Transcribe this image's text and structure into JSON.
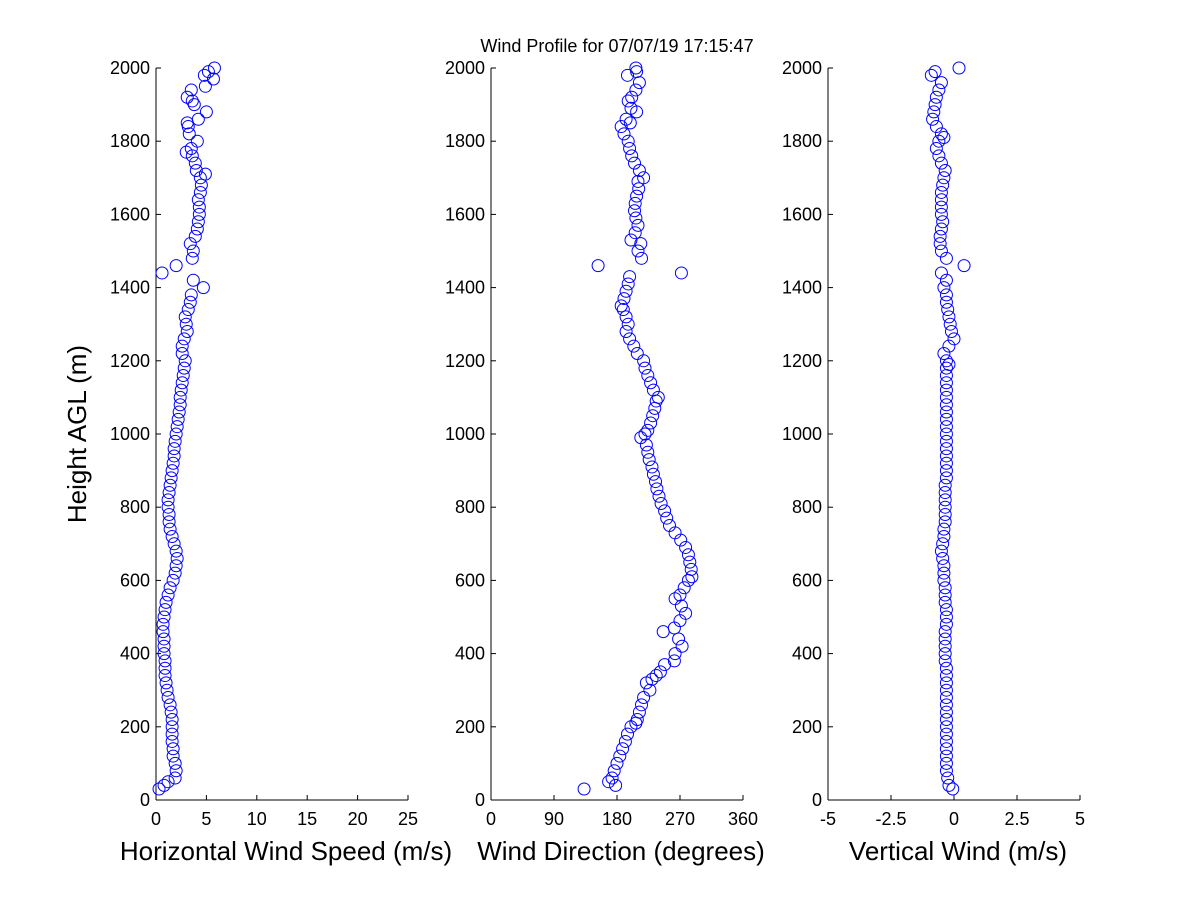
{
  "title": "Wind Profile for  07/07/19 17:15:47",
  "colors": {
    "marker": "#0000ff",
    "axis": "#000000",
    "background": "#ffffff"
  },
  "chart_data": [
    {
      "type": "scatter",
      "id": "speed",
      "xlabel": "Horizontal Wind Speed (m/s)",
      "ylabel": "Height AGL (m)",
      "xlim": [
        0,
        25
      ],
      "ylim": [
        0,
        2000
      ],
      "xticks": [
        0,
        5,
        10,
        15,
        20,
        25
      ],
      "xtick_labels": [
        "0",
        "5",
        "10",
        "15",
        "20",
        "25"
      ],
      "yticks": [
        0,
        200,
        400,
        600,
        800,
        1000,
        1200,
        1400,
        1600,
        1800,
        2000
      ],
      "ytick_labels": [
        "0",
        "200",
        "400",
        "600",
        "800",
        "1000",
        "1200",
        "1400",
        "1600",
        "1800",
        "2000"
      ],
      "grid": false,
      "marker": "open-circle",
      "points": [
        [
          0.3,
          30
        ],
        [
          0.8,
          40
        ],
        [
          1.2,
          50
        ],
        [
          1.9,
          60
        ],
        [
          2.0,
          80
        ],
        [
          1.9,
          100
        ],
        [
          1.7,
          120
        ],
        [
          1.7,
          140
        ],
        [
          1.6,
          160
        ],
        [
          1.6,
          180
        ],
        [
          1.6,
          200
        ],
        [
          1.6,
          220
        ],
        [
          1.5,
          240
        ],
        [
          1.4,
          260
        ],
        [
          1.2,
          280
        ],
        [
          1.1,
          300
        ],
        [
          1.0,
          320
        ],
        [
          0.9,
          340
        ],
        [
          0.9,
          360
        ],
        [
          0.9,
          380
        ],
        [
          0.8,
          400
        ],
        [
          0.8,
          420
        ],
        [
          0.8,
          440
        ],
        [
          0.7,
          460
        ],
        [
          0.7,
          480
        ],
        [
          0.8,
          500
        ],
        [
          0.9,
          520
        ],
        [
          1.0,
          540
        ],
        [
          1.2,
          560
        ],
        [
          1.4,
          580
        ],
        [
          1.7,
          600
        ],
        [
          1.9,
          620
        ],
        [
          2.0,
          640
        ],
        [
          2.1,
          660
        ],
        [
          2.0,
          680
        ],
        [
          1.8,
          700
        ],
        [
          1.6,
          720
        ],
        [
          1.4,
          740
        ],
        [
          1.3,
          760
        ],
        [
          1.3,
          780
        ],
        [
          1.2,
          800
        ],
        [
          1.2,
          820
        ],
        [
          1.3,
          840
        ],
        [
          1.4,
          860
        ],
        [
          1.5,
          880
        ],
        [
          1.6,
          900
        ],
        [
          1.7,
          920
        ],
        [
          1.8,
          940
        ],
        [
          1.8,
          960
        ],
        [
          1.9,
          980
        ],
        [
          2.0,
          1000
        ],
        [
          2.1,
          1020
        ],
        [
          2.2,
          1040
        ],
        [
          2.3,
          1060
        ],
        [
          2.4,
          1080
        ],
        [
          2.4,
          1100
        ],
        [
          2.5,
          1120
        ],
        [
          2.6,
          1140
        ],
        [
          2.7,
          1160
        ],
        [
          2.8,
          1180
        ],
        [
          2.9,
          1200
        ],
        [
          2.6,
          1220
        ],
        [
          2.6,
          1240
        ],
        [
          2.8,
          1260
        ],
        [
          3.1,
          1280
        ],
        [
          3.0,
          1300
        ],
        [
          2.9,
          1320
        ],
        [
          3.2,
          1340
        ],
        [
          3.4,
          1360
        ],
        [
          3.5,
          1380
        ],
        [
          4.7,
          1400
        ],
        [
          3.7,
          1420
        ],
        [
          0.6,
          1440
        ],
        [
          2.0,
          1460
        ],
        [
          3.6,
          1480
        ],
        [
          3.7,
          1500
        ],
        [
          3.4,
          1520
        ],
        [
          3.9,
          1540
        ],
        [
          4.1,
          1560
        ],
        [
          4.2,
          1580
        ],
        [
          4.3,
          1600
        ],
        [
          4.3,
          1620
        ],
        [
          4.2,
          1640
        ],
        [
          4.4,
          1660
        ],
        [
          4.5,
          1680
        ],
        [
          4.4,
          1700
        ],
        [
          4.9,
          1710
        ],
        [
          4.0,
          1720
        ],
        [
          3.9,
          1740
        ],
        [
          3.6,
          1760
        ],
        [
          3.0,
          1770
        ],
        [
          3.5,
          1780
        ],
        [
          4.1,
          1800
        ],
        [
          3.3,
          1820
        ],
        [
          3.2,
          1840
        ],
        [
          3.1,
          1850
        ],
        [
          4.2,
          1860
        ],
        [
          5.0,
          1880
        ],
        [
          3.8,
          1900
        ],
        [
          3.6,
          1910
        ],
        [
          3.1,
          1920
        ],
        [
          3.5,
          1940
        ],
        [
          4.9,
          1950
        ],
        [
          5.7,
          1970
        ],
        [
          4.8,
          1980
        ],
        [
          5.2,
          1990
        ],
        [
          5.8,
          2000
        ]
      ]
    },
    {
      "type": "scatter",
      "id": "direction",
      "xlabel": "Wind Direction (degrees)",
      "ylabel": "",
      "xlim": [
        0,
        360
      ],
      "ylim": [
        0,
        2000
      ],
      "xticks": [
        0,
        90,
        180,
        270,
        360
      ],
      "xtick_labels": [
        "0",
        "90",
        "180",
        "270",
        "360"
      ],
      "yticks": [
        0,
        200,
        400,
        600,
        800,
        1000,
        1200,
        1400,
        1600,
        1800,
        2000
      ],
      "ytick_labels": [
        "0",
        "200",
        "400",
        "600",
        "800",
        "1000",
        "1200",
        "1400",
        "1600",
        "1800",
        "2000"
      ],
      "grid": false,
      "marker": "open-circle",
      "points": [
        [
          133,
          30
        ],
        [
          178,
          40
        ],
        [
          168,
          50
        ],
        [
          173,
          60
        ],
        [
          176,
          80
        ],
        [
          180,
          100
        ],
        [
          184,
          120
        ],
        [
          188,
          140
        ],
        [
          192,
          160
        ],
        [
          195,
          180
        ],
        [
          200,
          200
        ],
        [
          207,
          210
        ],
        [
          209,
          220
        ],
        [
          212,
          240
        ],
        [
          215,
          260
        ],
        [
          218,
          280
        ],
        [
          227,
          300
        ],
        [
          222,
          320
        ],
        [
          230,
          330
        ],
        [
          236,
          340
        ],
        [
          242,
          350
        ],
        [
          248,
          370
        ],
        [
          262,
          380
        ],
        [
          263,
          400
        ],
        [
          273,
          420
        ],
        [
          268,
          440
        ],
        [
          246,
          460
        ],
        [
          262,
          470
        ],
        [
          270,
          490
        ],
        [
          278,
          510
        ],
        [
          272,
          530
        ],
        [
          263,
          550
        ],
        [
          270,
          560
        ],
        [
          276,
          580
        ],
        [
          282,
          600
        ],
        [
          287,
          610
        ],
        [
          286,
          630
        ],
        [
          284,
          650
        ],
        [
          282,
          670
        ],
        [
          278,
          690
        ],
        [
          271,
          710
        ],
        [
          263,
          730
        ],
        [
          255,
          750
        ],
        [
          251,
          770
        ],
        [
          248,
          790
        ],
        [
          243,
          810
        ],
        [
          240,
          830
        ],
        [
          237,
          850
        ],
        [
          235,
          870
        ],
        [
          232,
          890
        ],
        [
          230,
          910
        ],
        [
          226,
          930
        ],
        [
          224,
          950
        ],
        [
          222,
          970
        ],
        [
          214,
          990
        ],
        [
          220,
          1000
        ],
        [
          224,
          1010
        ],
        [
          228,
          1030
        ],
        [
          231,
          1050
        ],
        [
          234,
          1070
        ],
        [
          236,
          1090
        ],
        [
          239,
          1100
        ],
        [
          232,
          1120
        ],
        [
          228,
          1140
        ],
        [
          224,
          1160
        ],
        [
          220,
          1180
        ],
        [
          218,
          1200
        ],
        [
          209,
          1220
        ],
        [
          204,
          1240
        ],
        [
          198,
          1260
        ],
        [
          193,
          1280
        ],
        [
          196,
          1300
        ],
        [
          193,
          1320
        ],
        [
          189,
          1340
        ],
        [
          186,
          1350
        ],
        [
          190,
          1370
        ],
        [
          193,
          1390
        ],
        [
          196,
          1410
        ],
        [
          198,
          1430
        ],
        [
          272,
          1440
        ],
        [
          153,
          1460
        ],
        [
          215,
          1480
        ],
        [
          210,
          1500
        ],
        [
          214,
          1520
        ],
        [
          200,
          1530
        ],
        [
          206,
          1550
        ],
        [
          210,
          1570
        ],
        [
          207,
          1590
        ],
        [
          205,
          1610
        ],
        [
          206,
          1630
        ],
        [
          208,
          1650
        ],
        [
          211,
          1670
        ],
        [
          210,
          1690
        ],
        [
          218,
          1700
        ],
        [
          212,
          1720
        ],
        [
          205,
          1740
        ],
        [
          201,
          1760
        ],
        [
          198,
          1780
        ],
        [
          196,
          1800
        ],
        [
          190,
          1820
        ],
        [
          186,
          1840
        ],
        [
          199,
          1850
        ],
        [
          193,
          1860
        ],
        [
          208,
          1880
        ],
        [
          200,
          1890
        ],
        [
          196,
          1910
        ],
        [
          201,
          1920
        ],
        [
          207,
          1940
        ],
        [
          212,
          1960
        ],
        [
          195,
          1980
        ],
        [
          208,
          1990
        ],
        [
          207,
          2000
        ]
      ]
    },
    {
      "type": "scatter",
      "id": "vertical",
      "xlabel": "Vertical Wind (m/s)",
      "ylabel": "",
      "xlim": [
        -5,
        5
      ],
      "ylim": [
        0,
        2000
      ],
      "xticks": [
        -5,
        -2.5,
        0,
        2.5,
        5
      ],
      "xtick_labels": [
        "-5",
        "-2.5",
        "0",
        "2.5",
        "5"
      ],
      "yticks": [
        0,
        200,
        400,
        600,
        800,
        1000,
        1200,
        1400,
        1600,
        1800,
        2000
      ],
      "ytick_labels": [
        "0",
        "200",
        "400",
        "600",
        "800",
        "1000",
        "1200",
        "1400",
        "1600",
        "1800",
        "2000"
      ],
      "grid": false,
      "marker": "open-circle",
      "points": [
        [
          -0.05,
          30
        ],
        [
          -0.2,
          40
        ],
        [
          -0.25,
          60
        ],
        [
          -0.3,
          80
        ],
        [
          -0.3,
          100
        ],
        [
          -0.3,
          120
        ],
        [
          -0.3,
          140
        ],
        [
          -0.3,
          160
        ],
        [
          -0.3,
          180
        ],
        [
          -0.3,
          200
        ],
        [
          -0.3,
          220
        ],
        [
          -0.3,
          240
        ],
        [
          -0.3,
          260
        ],
        [
          -0.3,
          280
        ],
        [
          -0.3,
          300
        ],
        [
          -0.3,
          320
        ],
        [
          -0.3,
          340
        ],
        [
          -0.3,
          360
        ],
        [
          -0.35,
          380
        ],
        [
          -0.35,
          400
        ],
        [
          -0.35,
          420
        ],
        [
          -0.35,
          440
        ],
        [
          -0.35,
          460
        ],
        [
          -0.3,
          480
        ],
        [
          -0.3,
          500
        ],
        [
          -0.3,
          520
        ],
        [
          -0.35,
          540
        ],
        [
          -0.35,
          560
        ],
        [
          -0.35,
          580
        ],
        [
          -0.4,
          600
        ],
        [
          -0.4,
          620
        ],
        [
          -0.4,
          640
        ],
        [
          -0.45,
          660
        ],
        [
          -0.5,
          680
        ],
        [
          -0.45,
          700
        ],
        [
          -0.4,
          720
        ],
        [
          -0.4,
          740
        ],
        [
          -0.35,
          760
        ],
        [
          -0.35,
          780
        ],
        [
          -0.35,
          800
        ],
        [
          -0.35,
          820
        ],
        [
          -0.35,
          840
        ],
        [
          -0.35,
          860
        ],
        [
          -0.3,
          880
        ],
        [
          -0.3,
          900
        ],
        [
          -0.3,
          920
        ],
        [
          -0.3,
          940
        ],
        [
          -0.3,
          960
        ],
        [
          -0.3,
          980
        ],
        [
          -0.3,
          1000
        ],
        [
          -0.3,
          1020
        ],
        [
          -0.3,
          1040
        ],
        [
          -0.3,
          1060
        ],
        [
          -0.3,
          1080
        ],
        [
          -0.3,
          1100
        ],
        [
          -0.3,
          1120
        ],
        [
          -0.3,
          1140
        ],
        [
          -0.3,
          1160
        ],
        [
          -0.3,
          1180
        ],
        [
          -0.2,
          1190
        ],
        [
          -0.3,
          1200
        ],
        [
          -0.4,
          1220
        ],
        [
          -0.2,
          1240
        ],
        [
          0.0,
          1260
        ],
        [
          -0.1,
          1280
        ],
        [
          -0.15,
          1300
        ],
        [
          -0.2,
          1320
        ],
        [
          -0.25,
          1340
        ],
        [
          -0.3,
          1360
        ],
        [
          -0.3,
          1380
        ],
        [
          -0.4,
          1400
        ],
        [
          -0.3,
          1420
        ],
        [
          -0.5,
          1440
        ],
        [
          0.4,
          1460
        ],
        [
          -0.3,
          1480
        ],
        [
          -0.5,
          1500
        ],
        [
          -0.55,
          1520
        ],
        [
          -0.55,
          1540
        ],
        [
          -0.5,
          1560
        ],
        [
          -0.45,
          1580
        ],
        [
          -0.5,
          1600
        ],
        [
          -0.5,
          1620
        ],
        [
          -0.5,
          1640
        ],
        [
          -0.5,
          1660
        ],
        [
          -0.45,
          1680
        ],
        [
          -0.4,
          1700
        ],
        [
          -0.35,
          1720
        ],
        [
          -0.5,
          1740
        ],
        [
          -0.6,
          1760
        ],
        [
          -0.7,
          1780
        ],
        [
          -0.6,
          1800
        ],
        [
          -0.4,
          1810
        ],
        [
          -0.5,
          1820
        ],
        [
          -0.7,
          1840
        ],
        [
          -0.85,
          1860
        ],
        [
          -0.8,
          1880
        ],
        [
          -0.75,
          1900
        ],
        [
          -0.7,
          1920
        ],
        [
          -0.6,
          1940
        ],
        [
          -0.5,
          1960
        ],
        [
          -0.9,
          1980
        ],
        [
          -0.75,
          1990
        ],
        [
          0.2,
          2000
        ]
      ]
    }
  ]
}
